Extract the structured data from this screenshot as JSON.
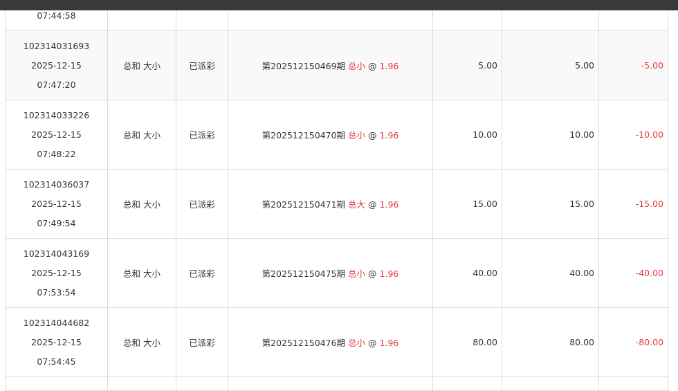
{
  "partial_row": {
    "time": "07:44:58"
  },
  "rows": [
    {
      "id": "102314031693",
      "date": "2025-12-15",
      "time": "07:47:20",
      "play": "总和 大小",
      "status": "已派彩",
      "issue": "第202512150469期",
      "pick": "总小",
      "at": "@",
      "odds": "1.96",
      "amount": "5.00",
      "valid": "5.00",
      "result": "-5.00"
    },
    {
      "id": "102314033226",
      "date": "2025-12-15",
      "time": "07:48:22",
      "play": "总和 大小",
      "status": "已派彩",
      "issue": "第202512150470期",
      "pick": "总小",
      "at": "@",
      "odds": "1.96",
      "amount": "10.00",
      "valid": "10.00",
      "result": "-10.00"
    },
    {
      "id": "102314036037",
      "date": "2025-12-15",
      "time": "07:49:54",
      "play": "总和 大小",
      "status": "已派彩",
      "issue": "第202512150471期",
      "pick": "总大",
      "at": "@",
      "odds": "1.96",
      "amount": "15.00",
      "valid": "15.00",
      "result": "-15.00"
    },
    {
      "id": "102314043169",
      "date": "2025-12-15",
      "time": "07:53:54",
      "play": "总和 大小",
      "status": "已派彩",
      "issue": "第202512150475期",
      "pick": "总小",
      "at": "@",
      "odds": "1.96",
      "amount": "40.00",
      "valid": "40.00",
      "result": "-40.00"
    },
    {
      "id": "102314044682",
      "date": "2025-12-15",
      "time": "07:54:45",
      "play": "总和 大小",
      "status": "已派彩",
      "issue": "第202512150476期",
      "pick": "总小",
      "at": "@",
      "odds": "1.96",
      "amount": "80.00",
      "valid": "80.00",
      "result": "-80.00"
    }
  ],
  "colors": {
    "highlight": "#e4393c",
    "stripe": "#f9f9f9",
    "topbar": "#3a3a3a"
  }
}
